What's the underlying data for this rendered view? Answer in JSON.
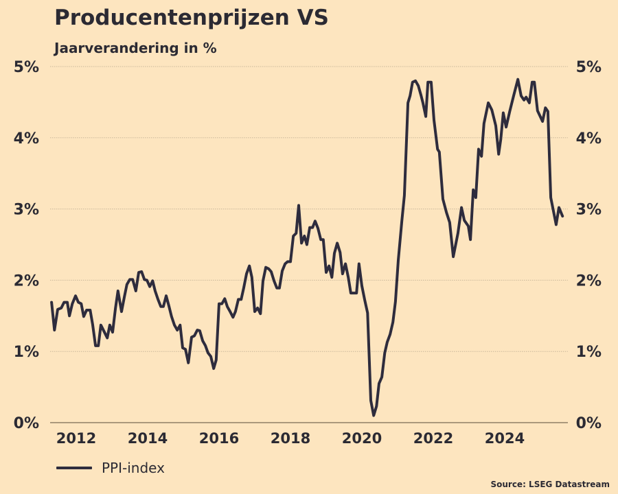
{
  "colors": {
    "background": "#fde5bf",
    "line": "#2e2c3d",
    "text": "#2b2a33",
    "grid": "#c9b79a",
    "axis": "#7a6a55"
  },
  "chart_data": {
    "type": "line",
    "title": "Producentenprijzen VS",
    "subtitle": "Jaarverandering in %",
    "source": "Source: LSEG Datastream",
    "xlabel": "",
    "ylabel": "",
    "xlim": [
      2011.2,
      2025.9
    ],
    "ylim": [
      0,
      5
    ],
    "grid": true,
    "legend_position": "bottom-left",
    "y_ticks": [
      {
        "value": 0,
        "label": "0%"
      },
      {
        "value": 1,
        "label": "1%"
      },
      {
        "value": 2,
        "label": "2%"
      },
      {
        "value": 3,
        "label": "3%"
      },
      {
        "value": 4,
        "label": "4%"
      },
      {
        "value": 5,
        "label": "5%"
      }
    ],
    "x_ticks": [
      {
        "value": 2012,
        "label": "2012"
      },
      {
        "value": 2014,
        "label": "2014"
      },
      {
        "value": 2016,
        "label": "2016"
      },
      {
        "value": 2018,
        "label": "2018"
      },
      {
        "value": 2020,
        "label": "2020"
      },
      {
        "value": 2022,
        "label": "2022"
      },
      {
        "value": 2024,
        "label": "2024"
      }
    ],
    "series": [
      {
        "name": "PPI-index",
        "points": [
          [
            2011.31,
            1.69
          ],
          [
            2011.39,
            1.3
          ],
          [
            2011.48,
            1.59
          ],
          [
            2011.58,
            1.61
          ],
          [
            2011.66,
            1.69
          ],
          [
            2011.75,
            1.69
          ],
          [
            2011.81,
            1.5
          ],
          [
            2011.89,
            1.67
          ],
          [
            2011.98,
            1.78
          ],
          [
            2012.06,
            1.69
          ],
          [
            2012.14,
            1.67
          ],
          [
            2012.21,
            1.49
          ],
          [
            2012.29,
            1.58
          ],
          [
            2012.39,
            1.58
          ],
          [
            2012.46,
            1.38
          ],
          [
            2012.54,
            1.08
          ],
          [
            2012.62,
            1.08
          ],
          [
            2012.69,
            1.37
          ],
          [
            2012.79,
            1.27
          ],
          [
            2012.87,
            1.19
          ],
          [
            2012.94,
            1.37
          ],
          [
            2013.02,
            1.27
          ],
          [
            2013.1,
            1.61
          ],
          [
            2013.17,
            1.85
          ],
          [
            2013.27,
            1.56
          ],
          [
            2013.35,
            1.77
          ],
          [
            2013.42,
            1.94
          ],
          [
            2013.5,
            2.01
          ],
          [
            2013.58,
            2.01
          ],
          [
            2013.67,
            1.85
          ],
          [
            2013.75,
            2.11
          ],
          [
            2013.83,
            2.12
          ],
          [
            2013.91,
            2.01
          ],
          [
            2013.98,
            2.0
          ],
          [
            2014.06,
            1.91
          ],
          [
            2014.14,
            1.99
          ],
          [
            2014.21,
            1.85
          ],
          [
            2014.29,
            1.73
          ],
          [
            2014.37,
            1.63
          ],
          [
            2014.44,
            1.63
          ],
          [
            2014.52,
            1.78
          ],
          [
            2014.6,
            1.63
          ],
          [
            2014.67,
            1.49
          ],
          [
            2014.75,
            1.37
          ],
          [
            2014.83,
            1.3
          ],
          [
            2014.91,
            1.37
          ],
          [
            2014.98,
            1.05
          ],
          [
            2015.06,
            1.03
          ],
          [
            2015.14,
            0.84
          ],
          [
            2015.23,
            1.2
          ],
          [
            2015.31,
            1.22
          ],
          [
            2015.39,
            1.3
          ],
          [
            2015.46,
            1.29
          ],
          [
            2015.54,
            1.15
          ],
          [
            2015.62,
            1.08
          ],
          [
            2015.69,
            0.98
          ],
          [
            2015.77,
            0.93
          ],
          [
            2015.85,
            0.76
          ],
          [
            2015.92,
            0.88
          ],
          [
            2016.0,
            1.67
          ],
          [
            2016.08,
            1.67
          ],
          [
            2016.16,
            1.74
          ],
          [
            2016.23,
            1.63
          ],
          [
            2016.31,
            1.56
          ],
          [
            2016.39,
            1.48
          ],
          [
            2016.46,
            1.56
          ],
          [
            2016.54,
            1.73
          ],
          [
            2016.62,
            1.73
          ],
          [
            2016.69,
            1.89
          ],
          [
            2016.77,
            2.09
          ],
          [
            2016.85,
            2.2
          ],
          [
            2016.92,
            2.04
          ],
          [
            2017.0,
            1.56
          ],
          [
            2017.08,
            1.61
          ],
          [
            2017.16,
            1.53
          ],
          [
            2017.23,
            1.99
          ],
          [
            2017.31,
            2.18
          ],
          [
            2017.39,
            2.16
          ],
          [
            2017.46,
            2.12
          ],
          [
            2017.54,
            1.99
          ],
          [
            2017.62,
            1.89
          ],
          [
            2017.69,
            1.89
          ],
          [
            2017.77,
            2.13
          ],
          [
            2017.85,
            2.23
          ],
          [
            2017.92,
            2.26
          ],
          [
            2018.0,
            2.26
          ],
          [
            2018.08,
            2.62
          ],
          [
            2018.16,
            2.66
          ],
          [
            2018.23,
            3.05
          ],
          [
            2018.31,
            2.52
          ],
          [
            2018.39,
            2.62
          ],
          [
            2018.46,
            2.5
          ],
          [
            2018.54,
            2.74
          ],
          [
            2018.62,
            2.74
          ],
          [
            2018.69,
            2.83
          ],
          [
            2018.77,
            2.73
          ],
          [
            2018.85,
            2.57
          ],
          [
            2018.92,
            2.57
          ],
          [
            2019.0,
            2.11
          ],
          [
            2019.08,
            2.2
          ],
          [
            2019.16,
            2.04
          ],
          [
            2019.23,
            2.38
          ],
          [
            2019.31,
            2.52
          ],
          [
            2019.39,
            2.39
          ],
          [
            2019.46,
            2.09
          ],
          [
            2019.54,
            2.23
          ],
          [
            2019.62,
            2.04
          ],
          [
            2019.69,
            1.82
          ],
          [
            2019.77,
            1.82
          ],
          [
            2019.85,
            1.82
          ],
          [
            2019.92,
            2.23
          ],
          [
            2020.0,
            1.92
          ],
          [
            2020.08,
            1.72
          ],
          [
            2020.16,
            1.54
          ],
          [
            2020.25,
            0.31
          ],
          [
            2020.33,
            0.1
          ],
          [
            2020.41,
            0.23
          ],
          [
            2020.48,
            0.55
          ],
          [
            2020.56,
            0.64
          ],
          [
            2020.64,
            0.98
          ],
          [
            2020.71,
            1.13
          ],
          [
            2020.79,
            1.24
          ],
          [
            2020.87,
            1.41
          ],
          [
            2020.94,
            1.7
          ],
          [
            2021.02,
            2.28
          ],
          [
            2021.12,
            2.83
          ],
          [
            2021.19,
            3.19
          ],
          [
            2021.29,
            4.49
          ],
          [
            2021.35,
            4.59
          ],
          [
            2021.42,
            4.78
          ],
          [
            2021.5,
            4.8
          ],
          [
            2021.58,
            4.73
          ],
          [
            2021.66,
            4.59
          ],
          [
            2021.71,
            4.49
          ],
          [
            2021.79,
            4.3
          ],
          [
            2021.85,
            4.78
          ],
          [
            2021.94,
            4.78
          ],
          [
            2022.02,
            4.25
          ],
          [
            2022.12,
            3.84
          ],
          [
            2022.17,
            3.8
          ],
          [
            2022.27,
            3.14
          ],
          [
            2022.37,
            2.95
          ],
          [
            2022.46,
            2.81
          ],
          [
            2022.56,
            2.33
          ],
          [
            2022.69,
            2.66
          ],
          [
            2022.79,
            3.02
          ],
          [
            2022.87,
            2.84
          ],
          [
            2022.98,
            2.76
          ],
          [
            2023.04,
            2.57
          ],
          [
            2023.12,
            3.27
          ],
          [
            2023.19,
            3.16
          ],
          [
            2023.27,
            3.84
          ],
          [
            2023.35,
            3.74
          ],
          [
            2023.42,
            4.2
          ],
          [
            2023.54,
            4.49
          ],
          [
            2023.64,
            4.39
          ],
          [
            2023.75,
            4.17
          ],
          [
            2023.83,
            3.77
          ],
          [
            2023.89,
            3.98
          ],
          [
            2023.96,
            4.35
          ],
          [
            2024.04,
            4.15
          ],
          [
            2024.14,
            4.37
          ],
          [
            2024.25,
            4.59
          ],
          [
            2024.37,
            4.82
          ],
          [
            2024.46,
            4.59
          ],
          [
            2024.54,
            4.53
          ],
          [
            2024.6,
            4.57
          ],
          [
            2024.69,
            4.49
          ],
          [
            2024.77,
            4.78
          ],
          [
            2024.83,
            4.78
          ],
          [
            2024.92,
            4.38
          ],
          [
            2025.06,
            4.23
          ],
          [
            2025.14,
            4.42
          ],
          [
            2025.21,
            4.37
          ],
          [
            2025.29,
            3.16
          ],
          [
            2025.44,
            2.78
          ],
          [
            2025.52,
            3.02
          ],
          [
            2025.62,
            2.9
          ]
        ]
      }
    ]
  }
}
